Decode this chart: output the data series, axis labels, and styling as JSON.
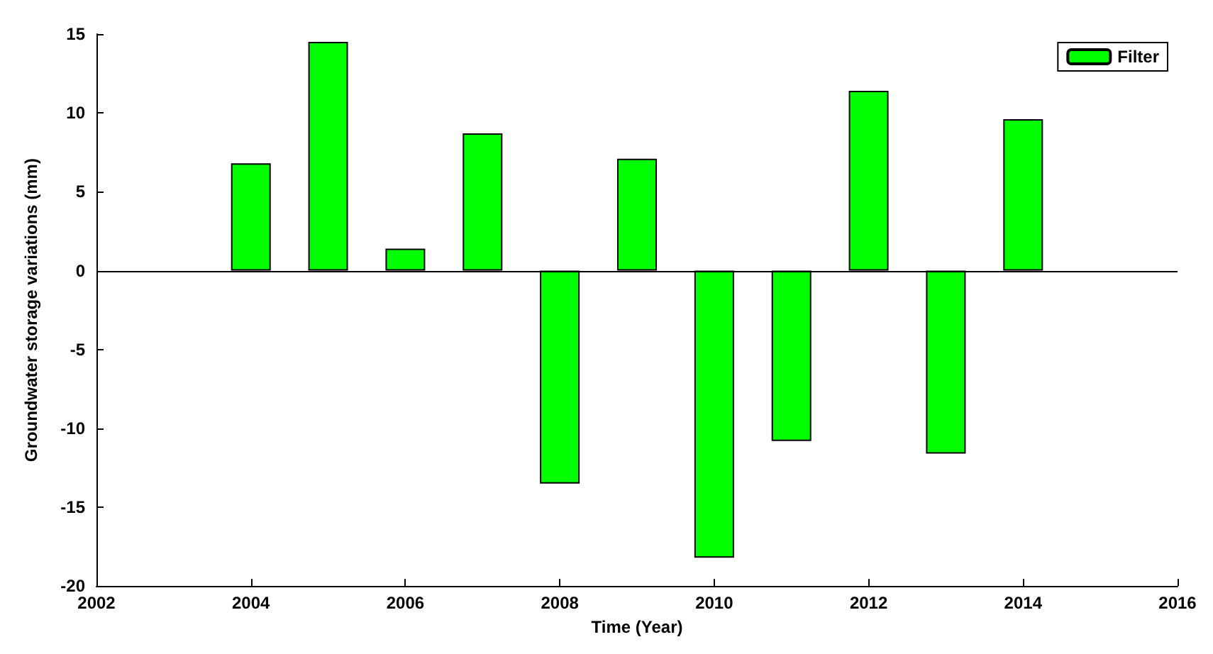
{
  "chart_data": {
    "type": "bar",
    "xlabel": "Time (Year)",
    "ylabel": "Groundwater storage variations (mm)",
    "x": [
      2004,
      2005,
      2006,
      2007,
      2008,
      2009,
      2010,
      2011,
      2012,
      2013,
      2014
    ],
    "series": [
      {
        "name": "Filter",
        "color": "#00ff00",
        "values": [
          6.8,
          14.5,
          1.4,
          8.7,
          -13.5,
          7.1,
          -18.2,
          -10.8,
          11.4,
          -11.6,
          9.6
        ]
      }
    ],
    "xlim": [
      2002,
      2016
    ],
    "xticks": [
      2002,
      2004,
      2006,
      2008,
      2010,
      2012,
      2014,
      2016
    ],
    "ylim": [
      -20,
      15
    ],
    "yticks": [
      -20,
      -15,
      -10,
      -5,
      0,
      5,
      10,
      15
    ],
    "ref_lines": [
      {
        "axis": "y",
        "value": 0,
        "color": "#000000"
      }
    ],
    "legend": "top right",
    "grid": false
  }
}
